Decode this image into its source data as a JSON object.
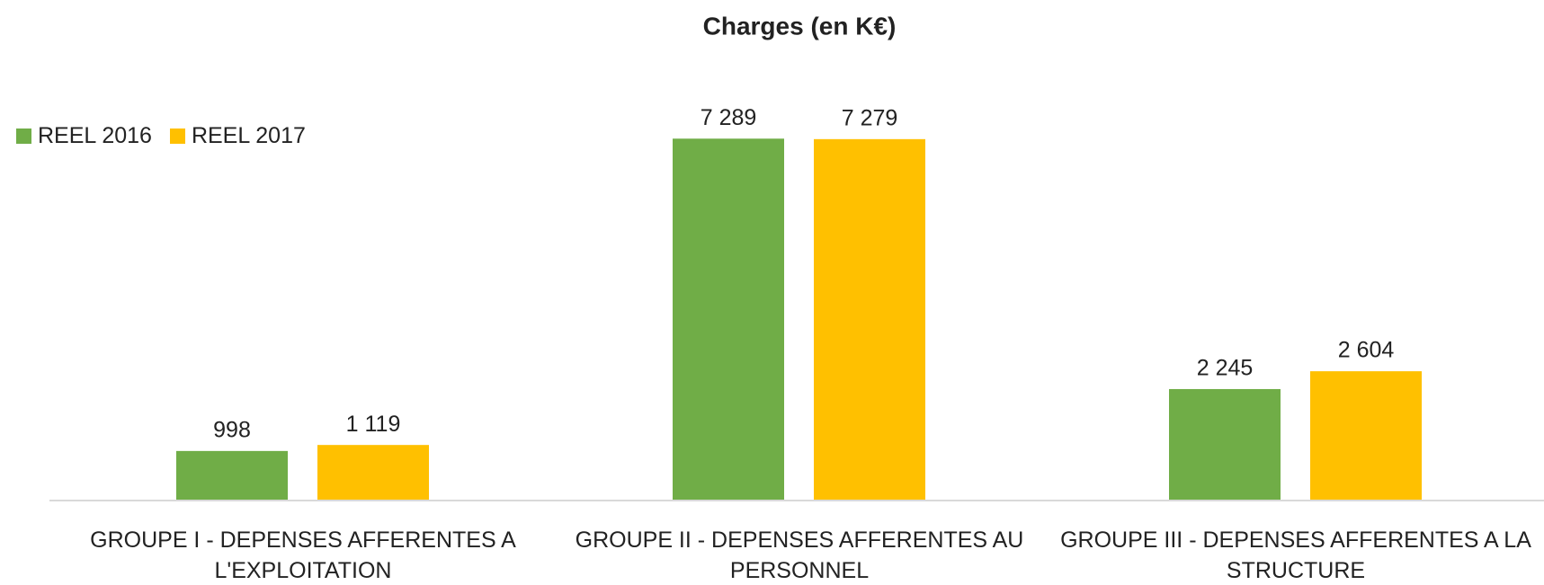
{
  "chart_data": {
    "type": "bar",
    "title": "Charges (en K€)",
    "categories": [
      "GROUPE I - DEPENSES AFFERENTES A L'EXPLOITATION",
      "GROUPE II - DEPENSES AFFERENTES AU PERSONNEL",
      "GROUPE III - DEPENSES AFFERENTES A LA STRUCTURE"
    ],
    "series": [
      {
        "name": "REEL 2016",
        "color": "#70ad47",
        "values": [
          998,
          7289,
          2245
        ],
        "value_labels": [
          "998",
          "7 289",
          "2 245"
        ]
      },
      {
        "name": "REEL 2017",
        "color": "#ffc000",
        "values": [
          1119,
          7279,
          2604
        ],
        "value_labels": [
          "1 119",
          "7 279",
          "2 604"
        ]
      }
    ],
    "ylim": [
      0,
      8000
    ],
    "legend": "top-left"
  }
}
